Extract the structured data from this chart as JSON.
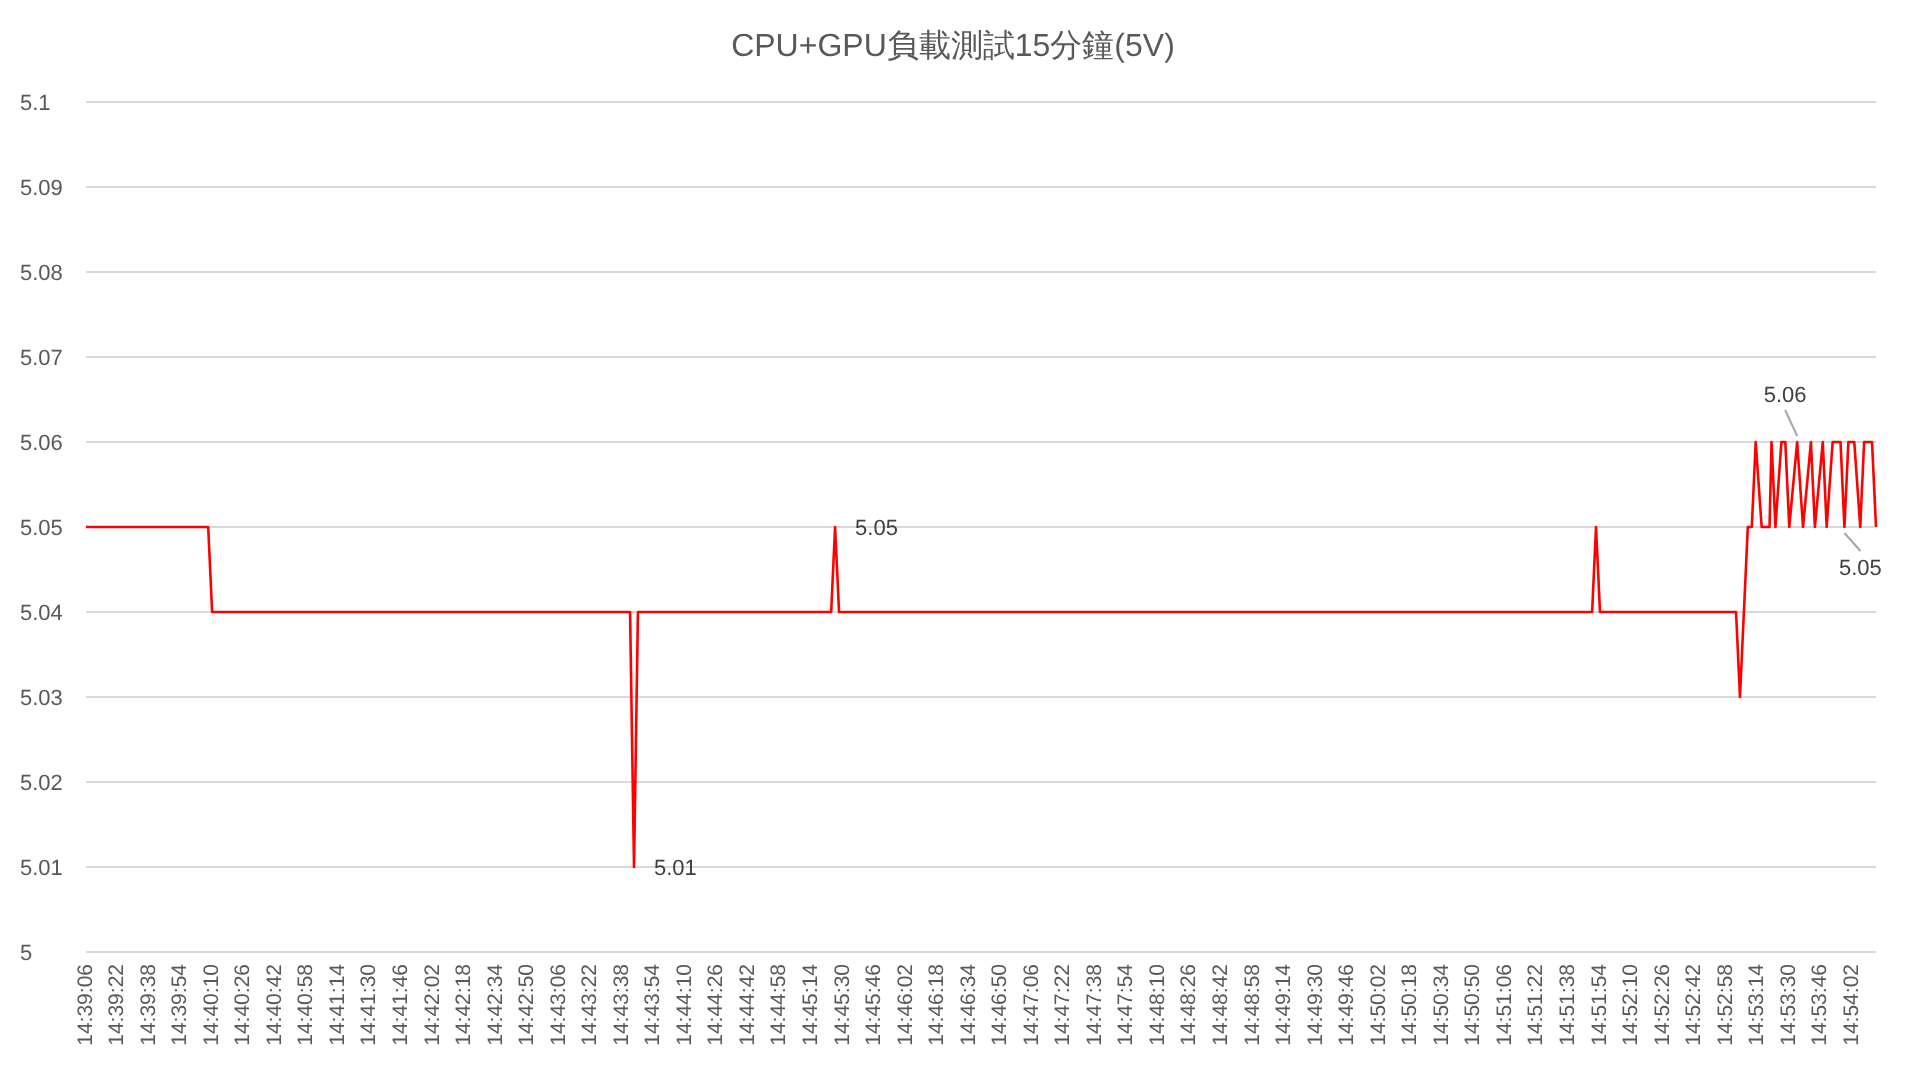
{
  "chart_data": {
    "type": "line",
    "title": "CPU+GPU負載測試15分鐘(5V)",
    "x": [
      14.65167,
      14.66889,
      14.66944,
      14.72833,
      14.72889,
      14.72944,
      14.75667,
      14.75722,
      14.75778,
      14.86389,
      14.86444,
      14.865,
      14.88417,
      14.88472,
      14.88583,
      14.88639,
      14.88694,
      14.88778,
      14.88889,
      14.88917,
      14.88972,
      14.89056,
      14.89111,
      14.89167,
      14.89278,
      14.89361,
      14.89472,
      14.89528,
      14.89639,
      14.89694,
      14.89778,
      14.89889,
      14.89944,
      14.9,
      14.90083,
      14.90167,
      14.90222,
      14.90333,
      14.90389
    ],
    "series": [
      {
        "color": "#ff0000",
        "values": [
          5.05,
          5.05,
          5.04,
          5.04,
          5.01,
          5.04,
          5.04,
          5.05,
          5.04,
          5.04,
          5.05,
          5.04,
          5.04,
          5.03,
          5.05,
          5.05,
          5.06,
          5.05,
          5.05,
          5.06,
          5.05,
          5.06,
          5.06,
          5.05,
          5.06,
          5.05,
          5.06,
          5.05,
          5.06,
          5.05,
          5.06,
          5.06,
          5.05,
          5.06,
          5.06,
          5.05,
          5.06,
          5.06,
          5.05
        ]
      }
    ],
    "xlim": [
      14.65167,
      14.90389
    ],
    "ylim": [
      5,
      5.1
    ],
    "yticks": [
      5,
      5.01,
      5.02,
      5.03,
      5.04,
      5.05,
      5.06,
      5.07,
      5.08,
      5.09,
      5.1
    ],
    "xticks": [
      {
        "value": 14.65167,
        "label": "14:39:06"
      },
      {
        "value": 14.65611,
        "label": "14:39:22"
      },
      {
        "value": 14.66056,
        "label": "14:39:38"
      },
      {
        "value": 14.665,
        "label": "14:39:54"
      },
      {
        "value": 14.66944,
        "label": "14:40:10"
      },
      {
        "value": 14.67389,
        "label": "14:40:26"
      },
      {
        "value": 14.67833,
        "label": "14:40:42"
      },
      {
        "value": 14.68278,
        "label": "14:40:58"
      },
      {
        "value": 14.68722,
        "label": "14:41:14"
      },
      {
        "value": 14.69167,
        "label": "14:41:30"
      },
      {
        "value": 14.69611,
        "label": "14:41:46"
      },
      {
        "value": 14.70056,
        "label": "14:42:02"
      },
      {
        "value": 14.705,
        "label": "14:42:18"
      },
      {
        "value": 14.70944,
        "label": "14:42:34"
      },
      {
        "value": 14.71389,
        "label": "14:42:50"
      },
      {
        "value": 14.71833,
        "label": "14:43:06"
      },
      {
        "value": 14.72278,
        "label": "14:43:22"
      },
      {
        "value": 14.72722,
        "label": "14:43:38"
      },
      {
        "value": 14.73167,
        "label": "14:43:54"
      },
      {
        "value": 14.73611,
        "label": "14:44:10"
      },
      {
        "value": 14.74056,
        "label": "14:44:26"
      },
      {
        "value": 14.745,
        "label": "14:44:42"
      },
      {
        "value": 14.74944,
        "label": "14:44:58"
      },
      {
        "value": 14.75389,
        "label": "14:45:14"
      },
      {
        "value": 14.75833,
        "label": "14:45:30"
      },
      {
        "value": 14.76278,
        "label": "14:45:46"
      },
      {
        "value": 14.76722,
        "label": "14:46:02"
      },
      {
        "value": 14.77167,
        "label": "14:46:18"
      },
      {
        "value": 14.77611,
        "label": "14:46:34"
      },
      {
        "value": 14.78056,
        "label": "14:46:50"
      },
      {
        "value": 14.785,
        "label": "14:47:06"
      },
      {
        "value": 14.78944,
        "label": "14:47:22"
      },
      {
        "value": 14.79389,
        "label": "14:47:38"
      },
      {
        "value": 14.79833,
        "label": "14:47:54"
      },
      {
        "value": 14.80278,
        "label": "14:48:10"
      },
      {
        "value": 14.80722,
        "label": "14:48:26"
      },
      {
        "value": 14.81167,
        "label": "14:48:42"
      },
      {
        "value": 14.81611,
        "label": "14:48:58"
      },
      {
        "value": 14.82056,
        "label": "14:49:14"
      },
      {
        "value": 14.825,
        "label": "14:49:30"
      },
      {
        "value": 14.82944,
        "label": "14:49:46"
      },
      {
        "value": 14.83389,
        "label": "14:50:02"
      },
      {
        "value": 14.83833,
        "label": "14:50:18"
      },
      {
        "value": 14.84278,
        "label": "14:50:34"
      },
      {
        "value": 14.84722,
        "label": "14:50:50"
      },
      {
        "value": 14.85167,
        "label": "14:51:06"
      },
      {
        "value": 14.85611,
        "label": "14:51:22"
      },
      {
        "value": 14.86056,
        "label": "14:51:38"
      },
      {
        "value": 14.865,
        "label": "14:51:54"
      },
      {
        "value": 14.86944,
        "label": "14:52:10"
      },
      {
        "value": 14.87389,
        "label": "14:52:26"
      },
      {
        "value": 14.87833,
        "label": "14:52:42"
      },
      {
        "value": 14.88278,
        "label": "14:52:58"
      },
      {
        "value": 14.88722,
        "label": "14:53:14"
      },
      {
        "value": 14.89167,
        "label": "14:53:30"
      },
      {
        "value": 14.89611,
        "label": "14:53:46"
      },
      {
        "value": 14.90056,
        "label": "14:54:02"
      }
    ],
    "grid": "y",
    "annotations": [
      {
        "text": "5.01",
        "x": 14.72889,
        "y": 5.01
      },
      {
        "text": "5.05",
        "x": 14.75722,
        "y": 5.05
      },
      {
        "text": "5.06",
        "x": 14.89278,
        "y": 5.06
      },
      {
        "text": "5.05",
        "x": 14.89944,
        "y": 5.05
      }
    ]
  }
}
